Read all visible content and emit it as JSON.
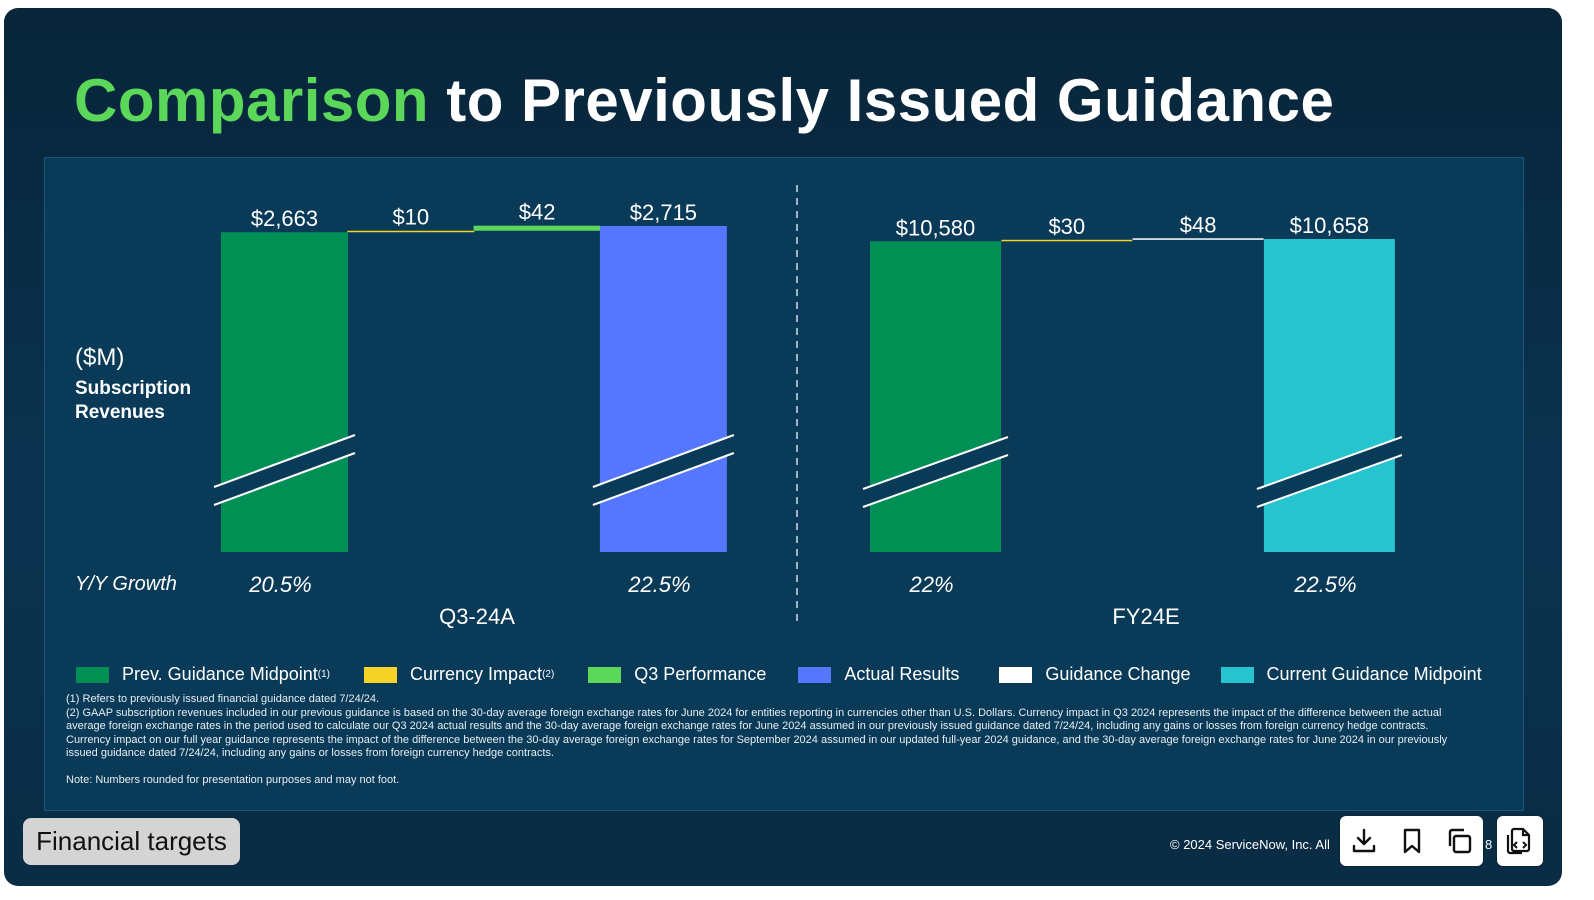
{
  "slide": {
    "title_accent": "Comparison",
    "title_rest": " to Previously Issued Guidance",
    "unit_label": "($M)",
    "metric_line1": "Subscription",
    "metric_line2": "Revenues",
    "growth_label": "Y/Y Growth",
    "copyright": "© 2024 ServiceNow, Inc. All",
    "page_number": "8"
  },
  "footnotes": {
    "note1": "(1) Refers to previously issued financial guidance dated 7/24/24.",
    "note2": "(2) GAAP subscription revenues included in our previous guidance is based on the 30-day average foreign exchange rates for June 2024 for entities reporting in currencies other than U.S. Dollars. Currency impact in Q3 2024 represents the impact of the difference between the actual average foreign exchange rates in the period used to calculate our Q3 2024 actual results and the 30-day average foreign exchange rates for June 2024 assumed in our previously issued guidance dated 7/24/24, including any gains or losses from foreign currency hedge contracts. Currency impact on our full year guidance represents the impact of the difference between the 30-day average foreign exchange rates for September 2024 assumed in our updated full-year 2024 guidance, and the 30-day average foreign exchange rates for June 2024 in our previously issued guidance dated 7/24/24, including any gains or losses from foreign currency hedge contracts.",
    "note3": "Note: Numbers rounded for presentation purposes and may not foot."
  },
  "toolbar": {
    "tag_label": "Financial targets",
    "download_icon": "download-icon",
    "bookmark_icon": "bookmark-icon",
    "copy_icon": "copy-icon",
    "copy_doc_icon": "copy-document-icon"
  },
  "chart_data": [
    {
      "type": "bar",
      "subtype": "waterfall",
      "title": "Q3-24A",
      "ylabel": "($M) Subscription Revenues",
      "axis_break": true,
      "categories": [
        "Prev. Guidance Midpoint",
        "Currency Impact",
        "Q3 Performance",
        "Actual Results"
      ],
      "values": [
        2663,
        10,
        42,
        2715
      ],
      "value_labels": [
        "$2,663",
        "$10",
        "$42",
        "$2,715"
      ],
      "kinds": [
        "total",
        "delta",
        "delta",
        "total"
      ],
      "colors": [
        "#009056",
        "#f5d327",
        "#5bd75a",
        "#5577ff"
      ],
      "growth": [
        {
          "category": "Prev. Guidance Midpoint",
          "label": "20.5%"
        },
        {
          "category": "Actual Results",
          "label": "22.5%"
        }
      ]
    },
    {
      "type": "bar",
      "subtype": "waterfall",
      "title": "FY24E",
      "ylabel": "($M) Subscription Revenues",
      "axis_break": true,
      "categories": [
        "Prev. Guidance Midpoint",
        "Currency Impact",
        "Guidance Change",
        "Current Guidance Midpoint"
      ],
      "values": [
        10580,
        30,
        48,
        10658
      ],
      "value_labels": [
        "$10,580",
        "$30",
        "$48",
        "$10,658"
      ],
      "kinds": [
        "total",
        "delta",
        "delta",
        "total"
      ],
      "colors": [
        "#009056",
        "#f5d327",
        "#ffffff",
        "#25c4cf"
      ],
      "growth": [
        {
          "category": "Prev. Guidance Midpoint",
          "label": "22%"
        },
        {
          "category": "Current Guidance Midpoint",
          "label": "22.5%"
        }
      ]
    }
  ],
  "legend": [
    {
      "label": "Prev. Guidance Midpoint",
      "sup": "(1)",
      "color": "#009056"
    },
    {
      "label": "Currency Impact",
      "sup": "(2)",
      "color": "#f5d327"
    },
    {
      "label": "Q3 Performance",
      "sup": "",
      "color": "#5bd75a"
    },
    {
      "label": "Actual Results",
      "sup": "",
      "color": "#5577ff"
    },
    {
      "label": "Guidance Change",
      "sup": "",
      "color": "#ffffff"
    },
    {
      "label": "Current Guidance Midpoint",
      "sup": "",
      "color": "#25c4cf"
    }
  ],
  "colors": {
    "accent_green": "#5bd75a",
    "panel_background": "#093a57",
    "break_gap": "#093a57"
  }
}
